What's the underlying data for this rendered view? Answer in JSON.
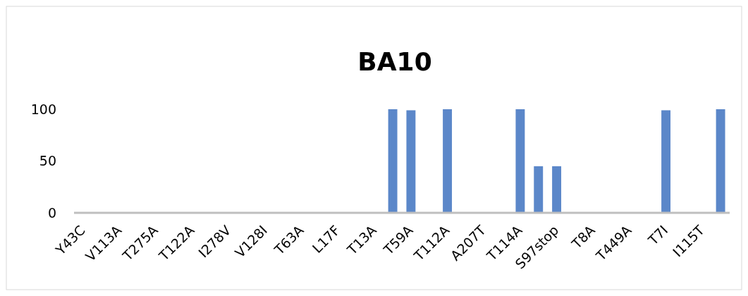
{
  "chart_data": {
    "type": "bar",
    "title": "BA10",
    "categories": [
      "Y43C",
      null,
      "V113A",
      null,
      "T275A",
      null,
      "T122A",
      null,
      "I278V",
      null,
      "V128I",
      null,
      "T63A",
      null,
      "L17F",
      null,
      "T13A",
      null,
      "T59A",
      null,
      "T112A",
      null,
      "A207T",
      null,
      "T114A",
      null,
      "S97stop",
      null,
      "T8A",
      null,
      "T449A",
      null,
      "T7I",
      null,
      "I115T",
      null
    ],
    "values": [
      0,
      0,
      0,
      0,
      0,
      0,
      0,
      0,
      0,
      0,
      0,
      0,
      0,
      0,
      0,
      0,
      0,
      100,
      99,
      0,
      100,
      0,
      0,
      0,
      100,
      45,
      45,
      0,
      0,
      0,
      0,
      0,
      99,
      0,
      0,
      100
    ],
    "color": "#5b87c9",
    "ylim": [
      0,
      100
    ],
    "yticks": [
      0,
      50,
      100
    ],
    "grid": false
  }
}
